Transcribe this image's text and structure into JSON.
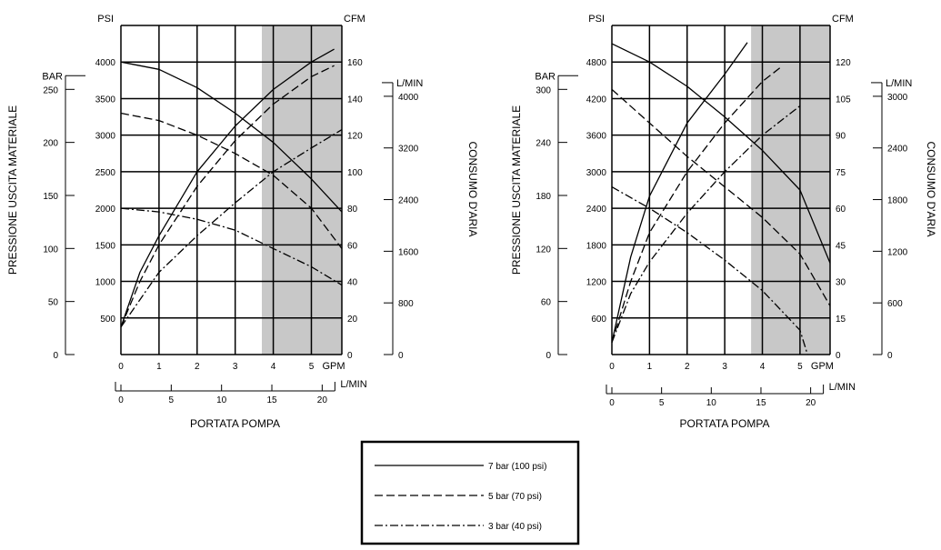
{
  "chart_data": [
    {
      "type": "line",
      "units": {
        "bar": "BAR",
        "psi": "PSI",
        "cfm": "CFM",
        "lmin_air": "L/MIN",
        "gpm": "GPM",
        "lmin_flow": "L/MIN"
      },
      "ylabel_left": "PRESSIONE USCITA MATERIALE",
      "ylabel_right": "CONSUMO D'ARIA",
      "xlabel": "PORTATA POMPA",
      "psi_ticks": [
        500,
        1000,
        1500,
        2000,
        2500,
        3000,
        3500,
        4000
      ],
      "psi_lim": [
        0,
        4500
      ],
      "bar_ticks": [
        0,
        50,
        100,
        150,
        200,
        250
      ],
      "cfm_ticks": [
        0,
        20,
        40,
        60,
        80,
        100,
        120,
        140,
        160
      ],
      "cfm_lim": [
        0,
        180
      ],
      "lmin_air_ticks": [
        0,
        800,
        1600,
        2400,
        3200,
        4000
      ],
      "gpm_ticks": [
        0,
        1,
        2,
        3,
        4,
        5
      ],
      "gpm_lim": [
        0,
        5.8
      ],
      "lmin_flow_ticks": [
        0,
        5,
        10,
        15,
        20
      ],
      "shaded_gpm": [
        3.7,
        5.8
      ],
      "fluid_pressure_series": [
        {
          "name": "7 bar (100 psi)",
          "style": "solid",
          "x": [
            0,
            1,
            2,
            3,
            4,
            5,
            5.8
          ],
          "y": [
            4000,
            3900,
            3650,
            3300,
            2900,
            2400,
            1950
          ]
        },
        {
          "name": "5 bar (70 psi)",
          "style": "dashed",
          "x": [
            0,
            1,
            2,
            3,
            4,
            5,
            5.8
          ],
          "y": [
            3300,
            3200,
            3000,
            2750,
            2450,
            2000,
            1450
          ]
        },
        {
          "name": "3 bar (40 psi)",
          "style": "dashdot",
          "x": [
            0,
            1,
            2,
            3,
            4,
            5,
            5.8
          ],
          "y": [
            2000,
            1950,
            1850,
            1700,
            1450,
            1200,
            950
          ]
        }
      ],
      "air_consumption_series": [
        {
          "name": "7 bar (100 psi)",
          "style": "solid",
          "x": [
            0,
            0.5,
            1,
            2,
            3,
            4,
            5,
            5.6
          ],
          "y": [
            15,
            45,
            65,
            100,
            125,
            145,
            160,
            167
          ]
        },
        {
          "name": "5 bar (70 psi)",
          "style": "dashed",
          "x": [
            0,
            0.5,
            1,
            2,
            3,
            4,
            5,
            5.6
          ],
          "y": [
            15,
            40,
            60,
            92,
            117,
            137,
            152,
            158
          ]
        },
        {
          "name": "3 bar (40 psi)",
          "style": "dashdot",
          "x": [
            0,
            0.5,
            1,
            2,
            3,
            4,
            5,
            5.8
          ],
          "y": [
            15,
            30,
            45,
            65,
            83,
            100,
            113,
            123
          ]
        }
      ]
    },
    {
      "type": "line",
      "units": {
        "bar": "BAR",
        "psi": "PSI",
        "cfm": "CFM",
        "lmin_air": "L/MIN",
        "gpm": "GPM",
        "lmin_flow": "L/MIN"
      },
      "ylabel_left": "PRESSIONE USCITA MATERIALE",
      "ylabel_right": "CONSUMO D'ARIA",
      "xlabel": "PORTATA POMPA",
      "psi_ticks": [
        600,
        1200,
        1800,
        2400,
        3000,
        3600,
        4200,
        4800
      ],
      "psi_lim": [
        0,
        5400
      ],
      "bar_ticks": [
        0,
        60,
        120,
        180,
        240,
        300
      ],
      "cfm_ticks": [
        0,
        15,
        30,
        45,
        60,
        75,
        90,
        105,
        120
      ],
      "cfm_lim": [
        0,
        135
      ],
      "lmin_air_ticks": [
        0,
        600,
        1200,
        1800,
        2400,
        3000
      ],
      "gpm_ticks": [
        0,
        1,
        2,
        3,
        4,
        5
      ],
      "gpm_lim": [
        0,
        5.8
      ],
      "lmin_flow_ticks": [
        0,
        5,
        10,
        15,
        20
      ],
      "shaded_gpm": [
        3.7,
        5.8
      ],
      "fluid_pressure_series": [
        {
          "name": "7 bar (100 psi)",
          "style": "solid",
          "x": [
            0,
            1,
            2,
            3,
            4,
            5,
            5.8
          ],
          "y": [
            5100,
            4800,
            4400,
            3900,
            3350,
            2700,
            1500
          ]
        },
        {
          "name": "5 bar (70 psi)",
          "style": "dashed",
          "x": [
            0,
            1,
            2,
            3,
            4,
            5,
            5.8
          ],
          "y": [
            4350,
            3800,
            3250,
            2750,
            2250,
            1650,
            800
          ]
        },
        {
          "name": "3 bar (40 psi)",
          "style": "dashdot",
          "x": [
            0,
            1,
            2,
            3,
            4,
            5,
            5.2
          ],
          "y": [
            2750,
            2400,
            2000,
            1550,
            1050,
            400,
            0
          ]
        }
      ],
      "air_consumption_series": [
        {
          "name": "7 bar (100 psi)",
          "style": "solid",
          "x": [
            0,
            0.5,
            1,
            2,
            3,
            3.6
          ],
          "y": [
            5,
            40,
            65,
            95,
            115,
            128
          ]
        },
        {
          "name": "5 bar (70 psi)",
          "style": "dashed",
          "x": [
            0,
            0.5,
            1,
            2,
            3,
            4,
            4.5
          ],
          "y": [
            5,
            30,
            50,
            75,
            95,
            112,
            118
          ]
        },
        {
          "name": "3 bar (40 psi)",
          "style": "dashdot",
          "x": [
            0,
            0.5,
            1,
            2,
            3,
            4,
            5
          ],
          "y": [
            5,
            25,
            38,
            58,
            75,
            90,
            102
          ]
        }
      ]
    }
  ],
  "legend": [
    {
      "label": "7 bar (100 psi)",
      "style": "solid"
    },
    {
      "label": "5 bar (70 psi)",
      "style": "dashed"
    },
    {
      "label": "3 bar (40 psi)",
      "style": "dashdot"
    }
  ]
}
